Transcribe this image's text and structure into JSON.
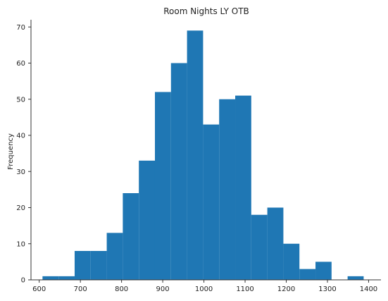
{
  "chart_data": {
    "type": "bar",
    "title": "Room Nights LY OTB",
    "xlabel": "",
    "ylabel": "Frequency",
    "xlim": [
      580,
      1430
    ],
    "ylim": [
      0,
      72
    ],
    "grid": false,
    "bar_color": "#1f77b4",
    "x_ticks": [
      600,
      700,
      800,
      900,
      1000,
      1100,
      1200,
      1300,
      1400
    ],
    "y_ticks": [
      0,
      10,
      20,
      30,
      40,
      50,
      60,
      70
    ],
    "bins": [
      {
        "x0": 608,
        "x1": 647,
        "count": 1
      },
      {
        "x0": 647,
        "x1": 686,
        "count": 1
      },
      {
        "x0": 686,
        "x1": 725,
        "count": 8
      },
      {
        "x0": 725,
        "x1": 764,
        "count": 8
      },
      {
        "x0": 764,
        "x1": 803,
        "count": 13
      },
      {
        "x0": 803,
        "x1": 842,
        "count": 24
      },
      {
        "x0": 842,
        "x1": 881,
        "count": 33
      },
      {
        "x0": 881,
        "x1": 920,
        "count": 52
      },
      {
        "x0": 920,
        "x1": 959,
        "count": 60
      },
      {
        "x0": 959,
        "x1": 998,
        "count": 69
      },
      {
        "x0": 998,
        "x1": 1037,
        "count": 43
      },
      {
        "x0": 1037,
        "x1": 1076,
        "count": 50
      },
      {
        "x0": 1076,
        "x1": 1115,
        "count": 51
      },
      {
        "x0": 1115,
        "x1": 1154,
        "count": 18
      },
      {
        "x0": 1154,
        "x1": 1193,
        "count": 20
      },
      {
        "x0": 1193,
        "x1": 1232,
        "count": 10
      },
      {
        "x0": 1232,
        "x1": 1271,
        "count": 3
      },
      {
        "x0": 1271,
        "x1": 1310,
        "count": 5
      },
      {
        "x0": 1310,
        "x1": 1349,
        "count": 0
      },
      {
        "x0": 1349,
        "x1": 1388,
        "count": 1
      }
    ]
  }
}
